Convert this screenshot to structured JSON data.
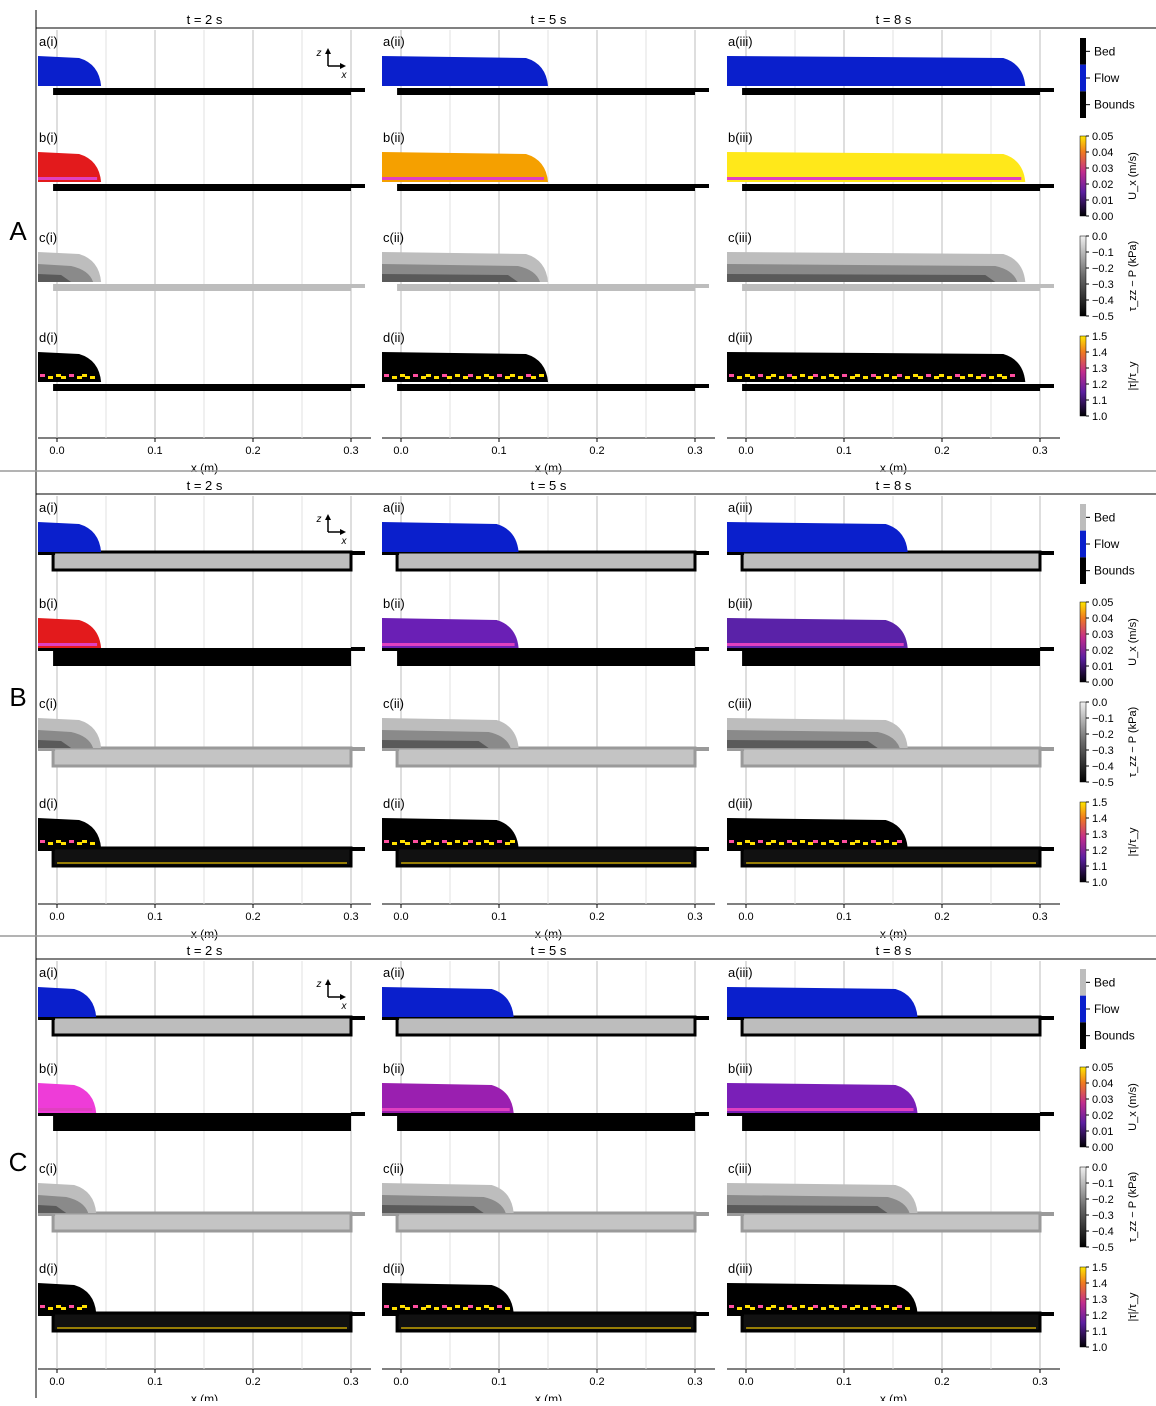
{
  "figure": {
    "column_times": [
      "t = 2 s",
      "t = 5 s",
      "t = 8 s"
    ],
    "row_prefixes": [
      "a",
      "b",
      "c",
      "d"
    ],
    "column_suffixes": [
      "(i)",
      "(ii)",
      "(iii)"
    ],
    "xlabel": "x (m)",
    "xticks": [
      "0.0",
      "0.1",
      "0.2",
      "0.3"
    ],
    "axis_glyph": {
      "z": "z",
      "x": "x"
    },
    "colorbars": [
      {
        "kind": "category",
        "labels": [
          "Bed",
          "Flow",
          "Bounds"
        ]
      },
      {
        "kind": "scale",
        "label": "U_x (m/s)",
        "ticks": [
          "0.05",
          "0.04",
          "0.03",
          "0.02",
          "0.01",
          "0.00"
        ],
        "cmap": "plasma-like"
      },
      {
        "kind": "scale",
        "label": "τ_zz − P (kPa)",
        "ticks": [
          "0.0",
          "−0.1",
          "−0.2",
          "−0.3",
          "−0.4",
          "−0.5"
        ],
        "cmap": "greys"
      },
      {
        "kind": "scale",
        "label": "|τ|/τ_y",
        "ticks": [
          "1.5",
          "1.4",
          "1.3",
          "1.2",
          "1.1",
          "1.0"
        ],
        "cmap": "plasma-like"
      }
    ],
    "colors": {
      "flow": "#0a1fcc",
      "bed": "#bdbdbd",
      "bounds": "#000000",
      "grid": "#c8c8c8"
    },
    "blocks": [
      {
        "id": "A",
        "bed_cells_light": false,
        "flow_front_m": [
          0.045,
          0.15,
          0.285
        ],
        "ux_colors": [
          "#e31a1c",
          "#f5a000",
          "#ffe81a"
        ]
      },
      {
        "id": "B",
        "bed_cells_light": true,
        "flow_front_m": [
          0.045,
          0.12,
          0.165
        ],
        "ux_colors": [
          "#e31a1c",
          "#6a1fb5",
          "#5a22a8"
        ]
      },
      {
        "id": "C",
        "bed_cells_light": true,
        "flow_front_m": [
          0.04,
          0.115,
          0.175
        ],
        "ux_colors": [
          "#ee3cd8",
          "#9a1fb0",
          "#7a1fb8"
        ]
      }
    ]
  }
}
